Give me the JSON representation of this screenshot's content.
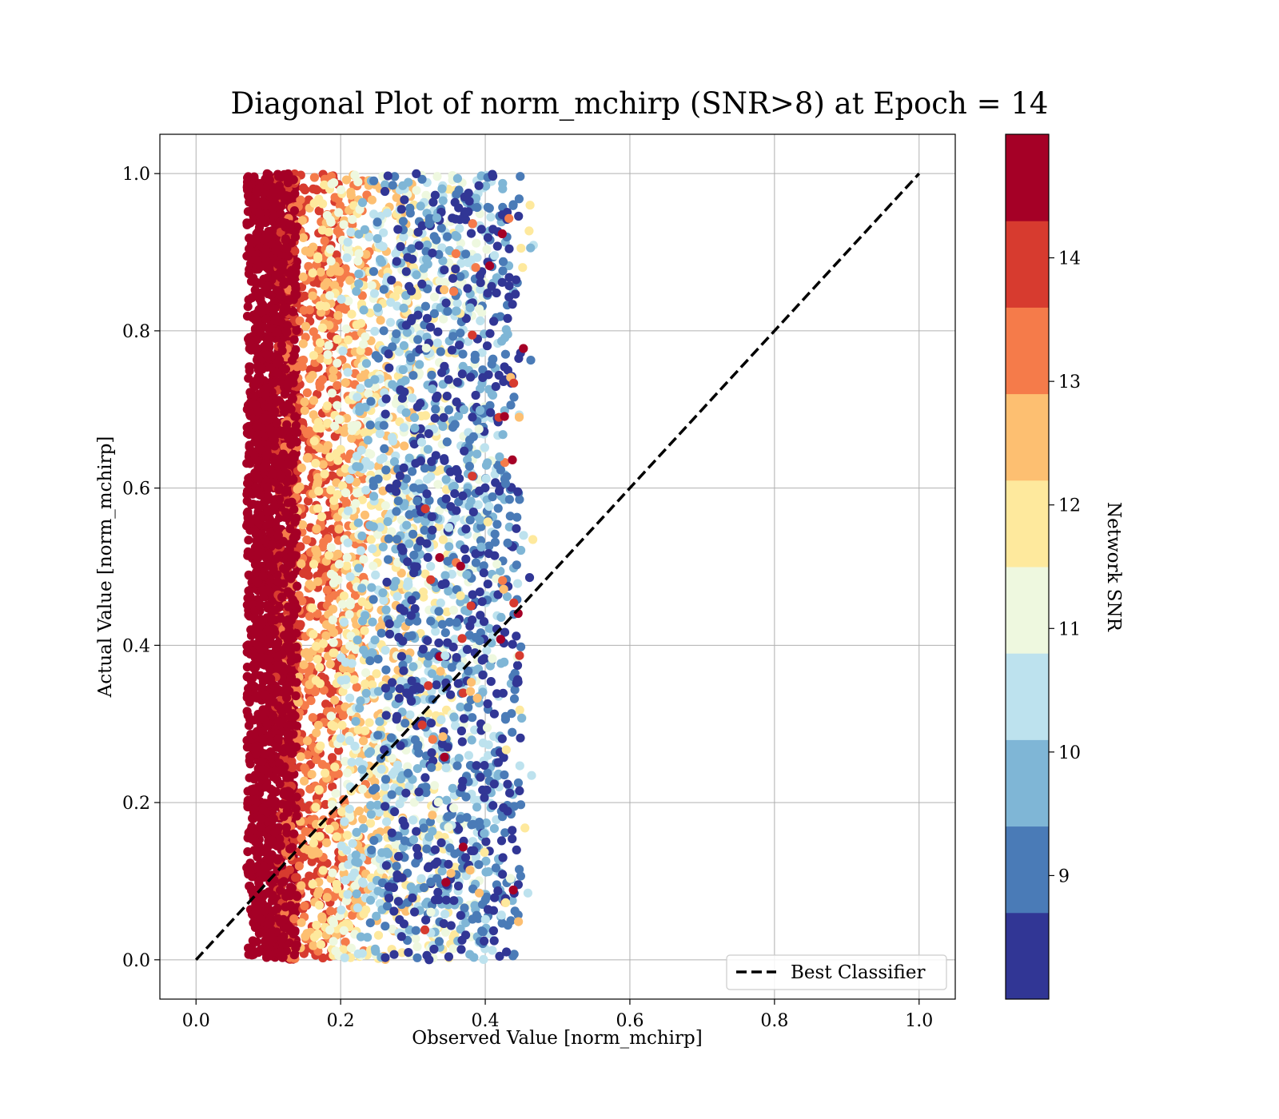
{
  "chart_data": {
    "type": "scatter",
    "title": "Diagonal Plot of norm_mchirp (SNR>8) at Epoch = 14",
    "xlabel": "Observed Value [norm_mchirp]",
    "ylabel": "Actual Value [norm_mchirp]",
    "xlim": [
      -0.05,
      1.05
    ],
    "ylim": [
      -0.05,
      1.05
    ],
    "xticks": [
      "0.0",
      "0.2",
      "0.4",
      "0.6",
      "0.8",
      "1.0"
    ],
    "yticks": [
      "0.0",
      "0.2",
      "0.4",
      "0.6",
      "0.8",
      "1.0"
    ],
    "grid": true,
    "legend": {
      "position": "lower-right",
      "entries": [
        "Best Classifier"
      ]
    },
    "reference_line": {
      "name": "Best Classifier",
      "x": [
        0.0,
        1.0
      ],
      "y": [
        0.0,
        1.0
      ],
      "style": "dashed",
      "color": "#000000"
    },
    "colorbar": {
      "label": "Network SNR",
      "range": [
        8,
        15
      ],
      "ticks": [
        "9",
        "10",
        "11",
        "12",
        "13",
        "14"
      ],
      "tick_values": [
        9,
        10,
        11,
        12,
        13,
        14
      ],
      "levels": 10,
      "colors": [
        "#313695",
        "#4a7bb7",
        "#7fb6d6",
        "#bde2ee",
        "#eef8df",
        "#fee99d",
        "#fdbf71",
        "#f57b4a",
        "#d73b2f",
        "#a50026"
      ]
    },
    "scatter_description": {
      "snr_bands": [
        {
          "snr": 14.5,
          "x_min": 0.07,
          "x_max": 0.14
        },
        {
          "snr": 13.7,
          "x_min": 0.11,
          "x_max": 0.2
        },
        {
          "snr": 13.0,
          "x_min": 0.12,
          "x_max": 0.24
        },
        {
          "snr": 12.3,
          "x_min": 0.14,
          "x_max": 0.3
        },
        {
          "snr": 11.6,
          "x_min": 0.16,
          "x_max": 0.36
        },
        {
          "snr": 11.0,
          "x_min": 0.18,
          "x_max": 0.4
        },
        {
          "snr": 10.3,
          "x_min": 0.2,
          "x_max": 0.42
        },
        {
          "snr": 9.6,
          "x_min": 0.22,
          "x_max": 0.44
        },
        {
          "snr": 8.9,
          "x_min": 0.24,
          "x_max": 0.45
        },
        {
          "snr": 8.3,
          "x_min": 0.26,
          "x_max": 0.45
        }
      ],
      "y_range": [
        0.0,
        1.0
      ]
    }
  }
}
